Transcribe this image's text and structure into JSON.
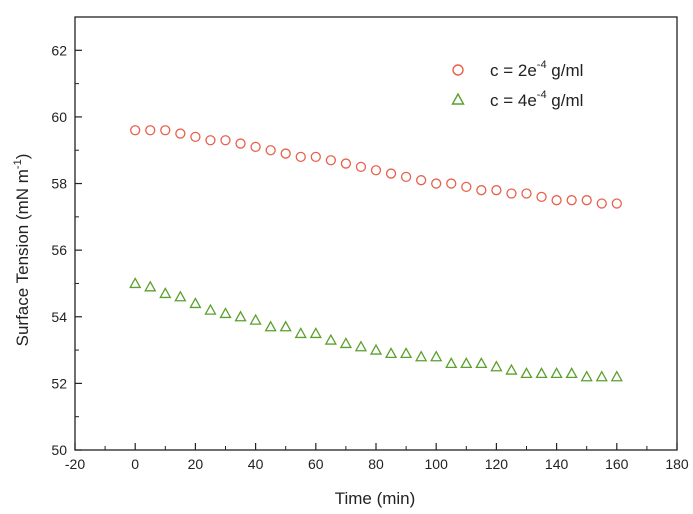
{
  "chart_data": {
    "type": "scatter",
    "xlabel": "Time (min)",
    "ylabel_main": "Surface Tension (mN m",
    "ylabel_sup": "-1",
    "ylabel_close": ")",
    "xlim": [
      -20,
      180
    ],
    "ylim": [
      50,
      63
    ],
    "x_ticks": [
      -20,
      0,
      20,
      40,
      60,
      80,
      100,
      120,
      140,
      160,
      180
    ],
    "y_ticks": [
      50,
      52,
      54,
      56,
      58,
      60,
      62
    ],
    "grid": false,
    "legend_position": "top-right",
    "series": [
      {
        "name_pre": "c = 2e",
        "name_sup": "-4",
        "name_post": " g/ml",
        "marker": "circle",
        "color": "#e8604c",
        "x": [
          0,
          5,
          10,
          15,
          20,
          25,
          30,
          35,
          40,
          45,
          50,
          55,
          60,
          65,
          70,
          75,
          80,
          85,
          90,
          95,
          100,
          105,
          110,
          115,
          120,
          125,
          130,
          135,
          140,
          145,
          150,
          155,
          160
        ],
        "y": [
          59.6,
          59.6,
          59.6,
          59.5,
          59.4,
          59.3,
          59.3,
          59.2,
          59.1,
          59.0,
          58.9,
          58.8,
          58.8,
          58.7,
          58.6,
          58.5,
          58.4,
          58.3,
          58.2,
          58.1,
          58.0,
          58.0,
          57.9,
          57.8,
          57.8,
          57.7,
          57.7,
          57.6,
          57.5,
          57.5,
          57.5,
          57.4,
          57.4
        ]
      },
      {
        "name_pre": "c = 4e",
        "name_sup": "-4",
        "name_post": " g/ml",
        "marker": "triangle",
        "color": "#5aa02c",
        "x": [
          0,
          5,
          10,
          15,
          20,
          25,
          30,
          35,
          40,
          45,
          50,
          55,
          60,
          65,
          70,
          75,
          80,
          85,
          90,
          95,
          100,
          105,
          110,
          115,
          120,
          125,
          130,
          135,
          140,
          145,
          150,
          155,
          160
        ],
        "y": [
          55.0,
          54.9,
          54.7,
          54.6,
          54.4,
          54.2,
          54.1,
          54.0,
          53.9,
          53.7,
          53.7,
          53.5,
          53.5,
          53.3,
          53.2,
          53.1,
          53.0,
          52.9,
          52.9,
          52.8,
          52.8,
          52.6,
          52.6,
          52.6,
          52.5,
          52.4,
          52.3,
          52.3,
          52.3,
          52.3,
          52.2,
          52.2,
          52.2
        ]
      }
    ]
  }
}
